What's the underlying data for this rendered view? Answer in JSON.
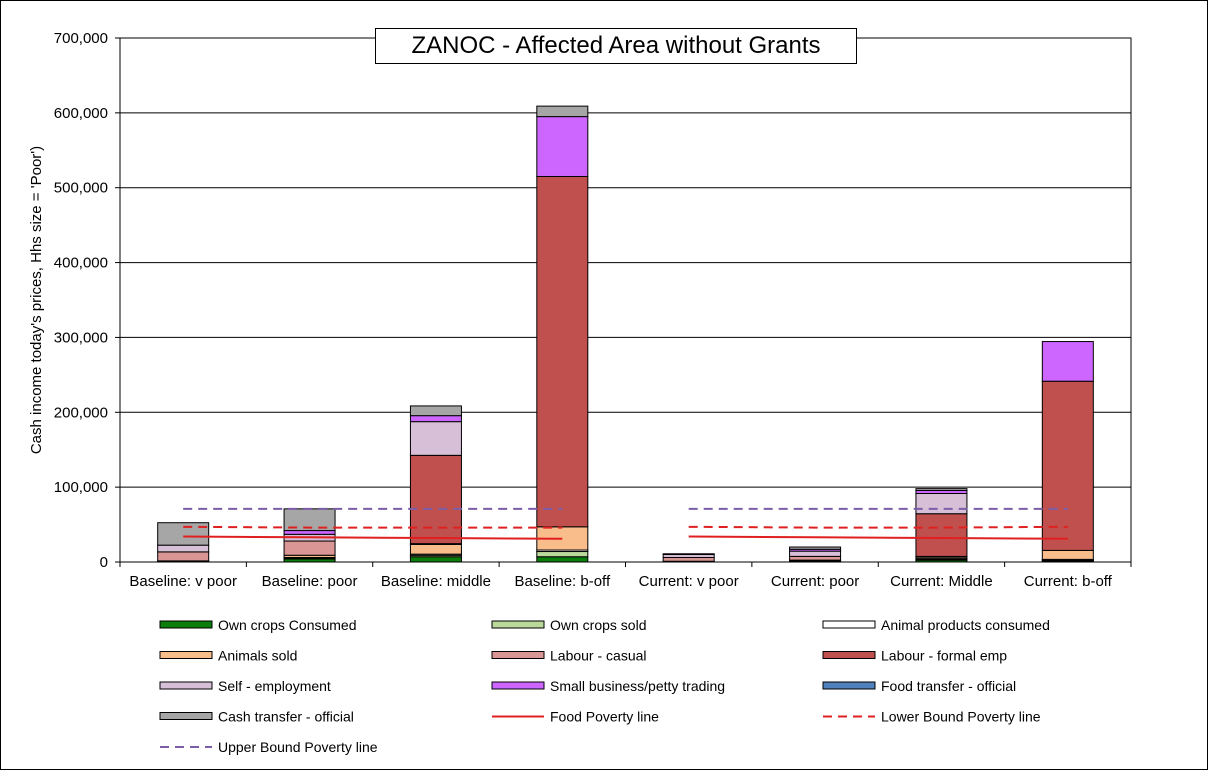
{
  "chart_data": {
    "type": "bar",
    "stacked": true,
    "title": "ZANOC - Affected Area without Grants",
    "ylabel": "Cash income today's prices, Hhs size = 'Poor')",
    "xlabel": "",
    "ylim": [
      0,
      700000
    ],
    "yticks": [
      "0",
      "100,000",
      "200,000",
      "300,000",
      "400,000",
      "500,000",
      "600,000",
      "700,000"
    ],
    "grid": true,
    "legend_position": "bottom",
    "categories": [
      "Baseline: v poor",
      "Baseline: poor",
      "Baseline: middle",
      "Baseline: b-off",
      "Current: v poor",
      "Current: poor",
      "Current: Middle",
      "Current: b-off"
    ],
    "series": [
      {
        "name": "Own crops Consumed",
        "color": "#0a7d0a",
        "values": [
          1500,
          4000,
          7000,
          7000,
          500,
          1000,
          2500,
          1000
        ]
      },
      {
        "name": "Own crops sold",
        "color": "#bcd99c",
        "values": [
          0,
          1000,
          2000,
          7000,
          0,
          0,
          1000,
          1000
        ]
      },
      {
        "name": "Animal products consumed",
        "color": "#ffffff",
        "values": [
          0,
          1000,
          1500,
          2000,
          0,
          500,
          1000,
          1500
        ]
      },
      {
        "name": "Animals sold",
        "color": "#f9bd8c",
        "values": [
          0,
          3000,
          13000,
          31000,
          500,
          1000,
          2000,
          12000
        ]
      },
      {
        "name": "Labour - casual",
        "color": "#d99694",
        "values": [
          12000,
          19000,
          1000,
          0,
          5000,
          5000,
          1000,
          0
        ]
      },
      {
        "name": "Labour - formal emp",
        "color": "#c0504d",
        "values": [
          0,
          0,
          118000,
          468000,
          0,
          0,
          57000,
          226000
        ]
      },
      {
        "name": "Self - employment",
        "color": "#d8bfd8",
        "values": [
          9000,
          9000,
          45000,
          0,
          4000,
          7000,
          27000,
          0
        ]
      },
      {
        "name": "Small business/petty trading",
        "color": "#cc66ff",
        "values": [
          0,
          5000,
          8000,
          80000,
          0,
          2500,
          4000,
          53000
        ]
      },
      {
        "name": "Food transfer - official",
        "color": "#4f81bd",
        "values": [
          0,
          0,
          0,
          0,
          0,
          0,
          0,
          0
        ]
      },
      {
        "name": "Cash transfer - official",
        "color": "#a6a6a6",
        "values": [
          30000,
          29000,
          13000,
          14000,
          1000,
          3000,
          2500,
          0
        ]
      }
    ],
    "lines": [
      {
        "name": "Food Poverty line",
        "color": "#e02020",
        "style": "solid",
        "values": [
          34000,
          33000,
          32000,
          31000,
          34000,
          33000,
          32000,
          31000
        ]
      },
      {
        "name": "Lower Bound Poverty line",
        "color": "#e02020",
        "style": "dashed",
        "values": [
          47000,
          46000,
          46000,
          46000,
          47000,
          46000,
          46000,
          47000
        ]
      },
      {
        "name": "Upper Bound Poverty line",
        "color": "#7b5ea7",
        "style": "dashed",
        "values": [
          71000,
          71000,
          71000,
          71000,
          71000,
          71000,
          71000,
          71000
        ]
      }
    ]
  }
}
